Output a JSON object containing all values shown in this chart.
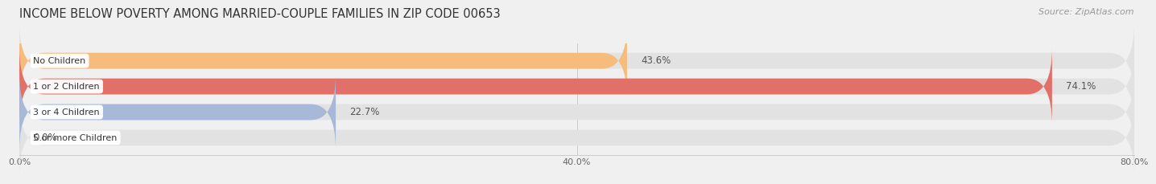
{
  "title": "INCOME BELOW POVERTY AMONG MARRIED-COUPLE FAMILIES IN ZIP CODE 00653",
  "source": "Source: ZipAtlas.com",
  "categories": [
    "No Children",
    "1 or 2 Children",
    "3 or 4 Children",
    "5 or more Children"
  ],
  "values": [
    43.6,
    74.1,
    22.7,
    0.0
  ],
  "bar_colors": [
    "#f5bc7c",
    "#e07068",
    "#a8b8d8",
    "#c8aed0"
  ],
  "bg_color": "#f0f0f0",
  "bar_bg_color": "#e2e2e2",
  "xlim_max": 80,
  "xtick_labels": [
    "0.0%",
    "40.0%",
    "80.0%"
  ],
  "xtick_vals": [
    0.0,
    40.0,
    80.0
  ],
  "title_fontsize": 10.5,
  "source_fontsize": 8,
  "category_fontsize": 8,
  "value_label_fontsize": 8.5
}
